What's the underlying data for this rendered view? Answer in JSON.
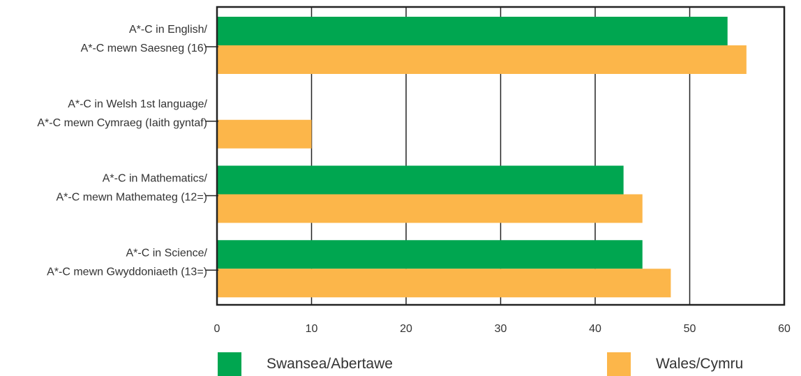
{
  "chart_data": {
    "type": "bar",
    "orientation": "horizontal",
    "categories": [
      [
        "A*-C in English/",
        "A*-C mewn Saesneg (16)"
      ],
      [
        "A*-C in Welsh 1st language/",
        "A*-C mewn Cymraeg (Iaith gyntaf)"
      ],
      [
        "A*-C in Mathematics/",
        "A*-C mewn Mathemateg (12=)"
      ],
      [
        "A*-C in Science/",
        "A*-C mewn Gwyddoniaeth (13=)"
      ]
    ],
    "series": [
      {
        "name": "Swansea/Abertawe",
        "values": [
          54,
          null,
          43,
          45
        ],
        "color": "#00a650"
      },
      {
        "name": "Wales/Cymru",
        "values": [
          56,
          10,
          45,
          48
        ],
        "color": "#fcb64a"
      }
    ],
    "xlim": [
      0,
      60
    ],
    "xticks": [
      "0",
      "10",
      "20",
      "30",
      "40",
      "50",
      "60"
    ],
    "grid": true,
    "legend": "bottom"
  }
}
